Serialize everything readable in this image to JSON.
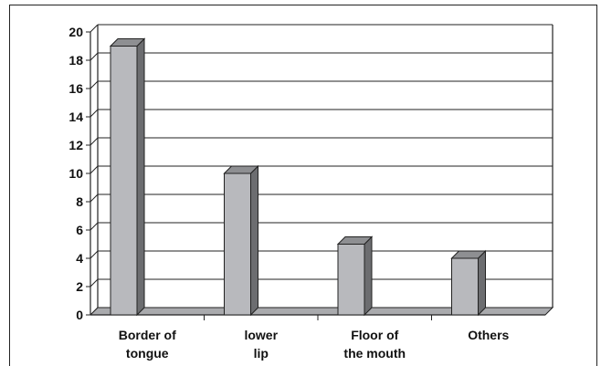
{
  "chart_data": {
    "type": "bar",
    "categories": [
      [
        "Border of",
        "tongue"
      ],
      [
        "lower",
        "lip"
      ],
      [
        "Floor of",
        "the mouth"
      ],
      [
        "Others"
      ]
    ],
    "values": [
      19,
      10,
      5,
      4
    ],
    "ylim": [
      0,
      20
    ],
    "yticks": [
      0,
      2,
      4,
      6,
      8,
      10,
      12,
      14,
      16,
      18,
      20
    ],
    "grid": true,
    "legend": "none",
    "colors": {
      "bar_front": "#b8b9bd",
      "bar_top": "#8e8f92",
      "bar_side": "#6c6d70",
      "floor": "#a9aaad",
      "grid": "#222222"
    }
  }
}
